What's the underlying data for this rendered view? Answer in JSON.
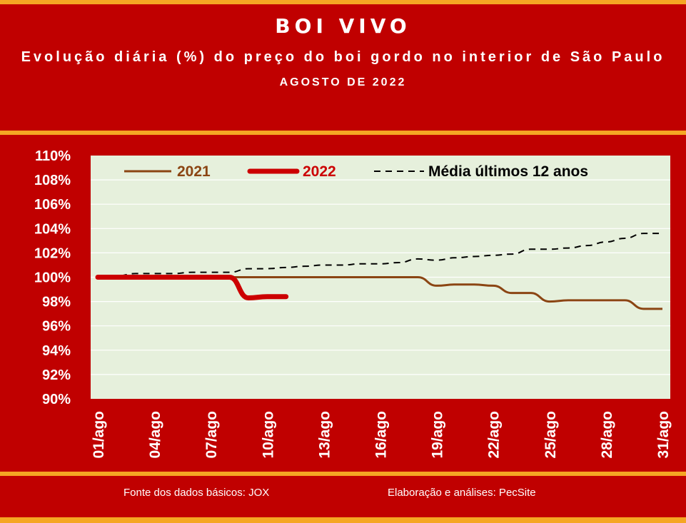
{
  "header": {
    "title": "BOI VIVO",
    "subtitle": "Evolução diária (%) do preço do boi gordo no interior de São Paulo",
    "period": "AGOSTO DE 2022"
  },
  "footer": {
    "source": "Fonte dos dados básicos: JOX",
    "credit": "Elaboração e análises: PecSite"
  },
  "colors": {
    "background": "#c00000",
    "plot_area": "#e6f0dc",
    "stripe_orange": "#f5a623",
    "series_2021": "#8b4513",
    "series_2022": "#cc0000",
    "series_avg": "#000000"
  },
  "chart_data": {
    "type": "line",
    "x": [
      "01/ago",
      "02/ago",
      "03/ago",
      "04/ago",
      "05/ago",
      "06/ago",
      "07/ago",
      "08/ago",
      "09/ago",
      "10/ago",
      "11/ago",
      "12/ago",
      "13/ago",
      "14/ago",
      "15/ago",
      "16/ago",
      "17/ago",
      "18/ago",
      "19/ago",
      "20/ago",
      "21/ago",
      "22/ago",
      "23/ago",
      "24/ago",
      "25/ago",
      "26/ago",
      "27/ago",
      "28/ago",
      "29/ago",
      "30/ago",
      "31/ago"
    ],
    "x_tick_labels": [
      "01/ago",
      "04/ago",
      "07/ago",
      "10/ago",
      "13/ago",
      "16/ago",
      "19/ago",
      "22/ago",
      "25/ago",
      "28/ago",
      "31/ago"
    ],
    "y_tick_labels": [
      "90%",
      "92%",
      "94%",
      "96%",
      "98%",
      "100%",
      "102%",
      "104%",
      "106%",
      "108%",
      "110%"
    ],
    "ylim": [
      90,
      110
    ],
    "y_unit": "%",
    "grid": true,
    "legend_position": "top",
    "series": [
      {
        "name": "2021",
        "style": "solid",
        "values": [
          100,
          100,
          100,
          100,
          100,
          100,
          100,
          100,
          100,
          100,
          100,
          100,
          100,
          100,
          100,
          100,
          100,
          100,
          99.3,
          99.4,
          99.4,
          99.3,
          98.7,
          98.7,
          98.0,
          98.1,
          98.1,
          98.1,
          98.1,
          97.4,
          97.4
        ]
      },
      {
        "name": "2022",
        "style": "thick",
        "values": [
          100,
          100,
          100,
          100,
          100,
          100,
          100,
          100,
          98.3,
          98.4,
          98.4,
          null,
          null,
          null,
          null,
          null,
          null,
          null,
          null,
          null,
          null,
          null,
          null,
          null,
          null,
          null,
          null,
          null,
          null,
          null,
          null
        ]
      },
      {
        "name": "Média últimos 12 anos",
        "style": "dashed",
        "values": [
          100.0,
          100.1,
          100.3,
          100.3,
          100.3,
          100.4,
          100.4,
          100.4,
          100.7,
          100.7,
          100.8,
          100.9,
          101.0,
          101.0,
          101.1,
          101.1,
          101.2,
          101.5,
          101.4,
          101.6,
          101.7,
          101.8,
          101.9,
          102.3,
          102.3,
          102.4,
          102.6,
          102.9,
          103.2,
          103.6,
          103.6
        ]
      }
    ]
  }
}
